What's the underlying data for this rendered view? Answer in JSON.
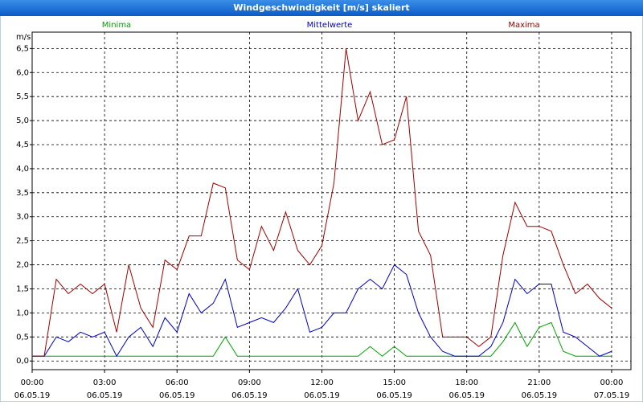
{
  "chart_data": {
    "type": "line",
    "title": "Windgeschwindigkeit [m/s] skaliert",
    "y_label": "m/s",
    "x": [
      0,
      0.5,
      1,
      1.5,
      2,
      2.5,
      3,
      3.5,
      4,
      4.5,
      5,
      5.5,
      6,
      6.5,
      7,
      7.5,
      8,
      8.5,
      9,
      9.5,
      10,
      10.5,
      11,
      11.5,
      12,
      12.5,
      13,
      13.5,
      14,
      14.5,
      15,
      15.5,
      16,
      16.5,
      17,
      17.5,
      18,
      18.5,
      19,
      19.5,
      20,
      20.5,
      21,
      21.5,
      22,
      22.5,
      23,
      23.5,
      24
    ],
    "series": [
      {
        "name": "Minima",
        "color": "#00a000",
        "values": [
          0.1,
          0.1,
          0.1,
          0.1,
          0.1,
          0.1,
          0.1,
          0.1,
          0.1,
          0.1,
          0.1,
          0.1,
          0.1,
          0.1,
          0.1,
          0.1,
          0.5,
          0.1,
          0.1,
          0.1,
          0.1,
          0.1,
          0.1,
          0.1,
          0.1,
          0.1,
          0.1,
          0.1,
          0.3,
          0.1,
          0.3,
          0.1,
          0.1,
          0.1,
          0.1,
          0.1,
          0.1,
          0.1,
          0.1,
          0.4,
          0.8,
          0.3,
          0.7,
          0.8,
          0.2,
          0.1,
          0.1,
          0.1,
          0.1
        ]
      },
      {
        "name": "Mittelwerte",
        "color": "#0000c0",
        "values": [
          0.1,
          0.1,
          0.5,
          0.4,
          0.6,
          0.5,
          0.6,
          0.1,
          0.5,
          0.7,
          0.3,
          0.9,
          0.6,
          1.4,
          1.0,
          1.2,
          1.7,
          0.7,
          0.8,
          0.9,
          0.8,
          1.1,
          1.5,
          0.6,
          0.7,
          1.0,
          1.0,
          1.5,
          1.7,
          1.5,
          2.0,
          1.8,
          1.0,
          0.5,
          0.2,
          0.1,
          0.1,
          0.1,
          0.3,
          0.8,
          1.7,
          1.4,
          1.6,
          1.6,
          0.6,
          0.5,
          0.3,
          0.1,
          0.2
        ]
      },
      {
        "name": "Maxima",
        "color": "#a00000",
        "values": [
          0.1,
          0.1,
          1.7,
          1.4,
          1.6,
          1.4,
          1.6,
          0.6,
          2.0,
          1.1,
          0.7,
          2.1,
          1.9,
          2.6,
          2.6,
          3.7,
          3.6,
          2.1,
          1.9,
          2.8,
          2.3,
          3.1,
          2.3,
          2.0,
          2.4,
          3.7,
          6.5,
          5.0,
          5.6,
          4.5,
          4.6,
          5.5,
          2.7,
          2.2,
          0.5,
          0.5,
          0.5,
          0.3,
          0.5,
          2.2,
          3.3,
          2.8,
          2.8,
          2.7,
          2.0,
          1.4,
          1.6,
          1.3,
          1.1
        ]
      }
    ],
    "xlim": [
      0,
      24.8
    ],
    "xticks": [
      {
        "value": 0,
        "label": [
          "00:00",
          "06.05.19"
        ]
      },
      {
        "value": 3,
        "label": [
          "03:00",
          "06.05.19"
        ]
      },
      {
        "value": 6,
        "label": [
          "06:00",
          "06.05.19"
        ]
      },
      {
        "value": 9,
        "label": [
          "09:00",
          "06.05.19"
        ]
      },
      {
        "value": 12,
        "label": [
          "12:00",
          "06.05.19"
        ]
      },
      {
        "value": 15,
        "label": [
          "15:00",
          "06.05.19"
        ]
      },
      {
        "value": 18,
        "label": [
          "18:00",
          "06.05.19"
        ]
      },
      {
        "value": 21,
        "label": [
          "21:00",
          "06.05.19"
        ]
      },
      {
        "value": 24,
        "label": [
          "00:00",
          "07.05.19"
        ]
      }
    ],
    "ylim": [
      -0.18,
      6.84
    ],
    "yticks": [
      {
        "value": 0,
        "label": "0,0"
      },
      {
        "value": 0.5,
        "label": "0,5"
      },
      {
        "value": 1,
        "label": "1,0"
      },
      {
        "value": 1.5,
        "label": "1,5"
      },
      {
        "value": 2,
        "label": "2,0"
      },
      {
        "value": 2.5,
        "label": "2,5"
      },
      {
        "value": 3,
        "label": "3,0"
      },
      {
        "value": 3.5,
        "label": "3,5"
      },
      {
        "value": 4,
        "label": "4,0"
      },
      {
        "value": 4.5,
        "label": "4,5"
      },
      {
        "value": 5,
        "label": "5,0"
      },
      {
        "value": 5.5,
        "label": "5,5"
      },
      {
        "value": 6,
        "label": "6,0"
      },
      {
        "value": 6.5,
        "label": "6,5"
      }
    ],
    "grid": true
  }
}
